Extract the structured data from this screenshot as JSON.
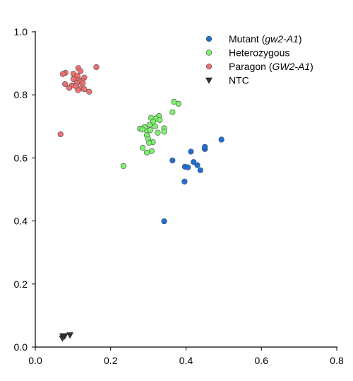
{
  "chart_data": {
    "type": "scatter",
    "xlim": [
      0,
      0.8
    ],
    "ylim": [
      0,
      1.0
    ],
    "x_ticks": [
      0,
      0.2,
      0.4,
      0.6,
      0.8
    ],
    "y_ticks": [
      0,
      0.2,
      0.4,
      0.6,
      0.8,
      1.0
    ],
    "x_tick_labels": [
      "0.0",
      "0.2",
      "0.4",
      "0.6",
      "0.8"
    ],
    "y_tick_labels": [
      "0.0",
      "0.2",
      "0.4",
      "0.6",
      "0.8",
      "1.0"
    ],
    "grid": false,
    "legend_position": "top-right",
    "series": [
      {
        "name": "Mutant",
        "name_italic": "gw2-A1",
        "name_suffix": "",
        "name_full": "Mutant (gw2-A1)",
        "color": "#1f6fd9",
        "marker": "circle",
        "points": [
          [
            0.494,
            0.658
          ],
          [
            0.45,
            0.628
          ],
          [
            0.45,
            0.635
          ],
          [
            0.413,
            0.62
          ],
          [
            0.364,
            0.592
          ],
          [
            0.42,
            0.587
          ],
          [
            0.43,
            0.577
          ],
          [
            0.397,
            0.572
          ],
          [
            0.405,
            0.57
          ],
          [
            0.438,
            0.561
          ],
          [
            0.396,
            0.525
          ],
          [
            0.342,
            0.399
          ]
        ]
      },
      {
        "name": "Heterozygous",
        "name_italic": "",
        "name_suffix": "",
        "name_full": "Heterozygous",
        "color": "#7df06e",
        "marker": "circle",
        "points": [
          [
            0.368,
            0.778
          ],
          [
            0.38,
            0.772
          ],
          [
            0.364,
            0.745
          ],
          [
            0.328,
            0.733
          ],
          [
            0.307,
            0.727
          ],
          [
            0.32,
            0.725
          ],
          [
            0.33,
            0.72
          ],
          [
            0.313,
            0.715
          ],
          [
            0.303,
            0.705
          ],
          [
            0.318,
            0.7
          ],
          [
            0.29,
            0.698
          ],
          [
            0.278,
            0.693
          ],
          [
            0.284,
            0.69
          ],
          [
            0.342,
            0.694
          ],
          [
            0.342,
            0.683
          ],
          [
            0.297,
            0.685
          ],
          [
            0.305,
            0.688
          ],
          [
            0.325,
            0.68
          ],
          [
            0.296,
            0.672
          ],
          [
            0.3,
            0.66
          ],
          [
            0.312,
            0.65
          ],
          [
            0.302,
            0.648
          ],
          [
            0.285,
            0.632
          ],
          [
            0.309,
            0.622
          ],
          [
            0.296,
            0.617
          ],
          [
            0.234,
            0.574
          ]
        ]
      },
      {
        "name": "Paragon",
        "name_italic": "GW2-A1",
        "name_suffix": "",
        "name_full": "Paragon (GW2-A1)",
        "color": "#f07070",
        "marker": "circle",
        "points": [
          [
            0.162,
            0.888
          ],
          [
            0.114,
            0.885
          ],
          [
            0.12,
            0.875
          ],
          [
            0.08,
            0.87
          ],
          [
            0.073,
            0.866
          ],
          [
            0.101,
            0.867
          ],
          [
            0.112,
            0.86
          ],
          [
            0.13,
            0.855
          ],
          [
            0.101,
            0.85
          ],
          [
            0.115,
            0.848
          ],
          [
            0.125,
            0.845
          ],
          [
            0.118,
            0.842
          ],
          [
            0.11,
            0.838
          ],
          [
            0.126,
            0.836
          ],
          [
            0.079,
            0.834
          ],
          [
            0.097,
            0.83
          ],
          [
            0.108,
            0.827
          ],
          [
            0.09,
            0.822
          ],
          [
            0.119,
            0.82
          ],
          [
            0.13,
            0.818
          ],
          [
            0.113,
            0.815
          ],
          [
            0.143,
            0.81
          ],
          [
            0.067,
            0.675
          ]
        ]
      },
      {
        "name": "NTC",
        "name_italic": "",
        "name_suffix": "",
        "name_full": "NTC",
        "color": "#333333",
        "marker": "triangle-down",
        "points": [
          [
            0.073,
            0.035
          ],
          [
            0.078,
            0.035
          ],
          [
            0.092,
            0.038
          ],
          [
            0.072,
            0.028
          ]
        ]
      }
    ]
  }
}
